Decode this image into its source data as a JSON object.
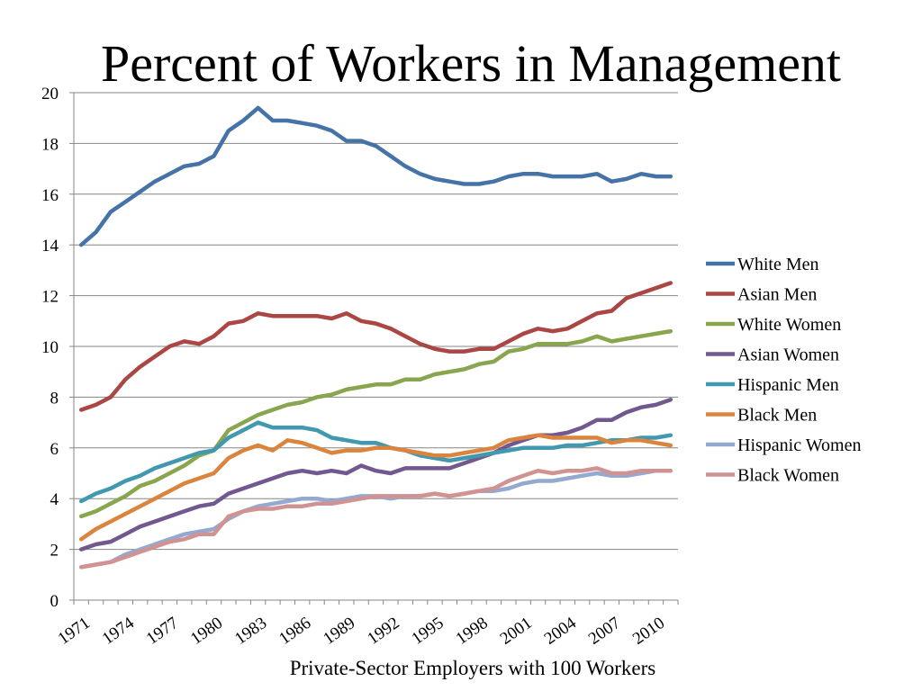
{
  "chart_data": {
    "type": "line",
    "title": "Percent of Workers in Management",
    "xlabel": "Private-Sector Employers with 100 Workers",
    "ylabel": "",
    "ylim": [
      0,
      20
    ],
    "yticks": [
      0,
      2,
      4,
      6,
      8,
      10,
      12,
      14,
      16,
      18,
      20
    ],
    "xlim": [
      1971,
      2011
    ],
    "xticks": [
      1971,
      1974,
      1977,
      1980,
      1983,
      1986,
      1989,
      1992,
      1995,
      1998,
      2001,
      2004,
      2007,
      2010
    ],
    "grid": "horizontal",
    "legend": "right",
    "x": [
      1971,
      1972,
      1973,
      1974,
      1975,
      1976,
      1977,
      1978,
      1979,
      1980,
      1981,
      1982,
      1983,
      1984,
      1985,
      1986,
      1987,
      1988,
      1989,
      1990,
      1991,
      1992,
      1993,
      1994,
      1995,
      1996,
      1997,
      1998,
      1999,
      2000,
      2001,
      2002,
      2003,
      2004,
      2005,
      2006,
      2007,
      2008,
      2009,
      2010,
      2011
    ],
    "series": [
      {
        "name": "White Men",
        "color": "#4572a7",
        "values": [
          14.0,
          14.5,
          15.3,
          15.7,
          16.1,
          16.5,
          16.8,
          17.1,
          17.2,
          17.5,
          18.5,
          18.9,
          19.4,
          18.9,
          18.9,
          18.8,
          18.7,
          18.5,
          18.1,
          18.1,
          17.9,
          17.5,
          17.1,
          16.8,
          16.6,
          16.5,
          16.4,
          16.4,
          16.5,
          16.7,
          16.8,
          16.8,
          16.7,
          16.7,
          16.7,
          16.8,
          16.5,
          16.6,
          16.8,
          16.7,
          16.7
        ]
      },
      {
        "name": "Asian Men",
        "color": "#aa4643",
        "values": [
          7.5,
          7.7,
          8.0,
          8.7,
          9.2,
          9.6,
          10.0,
          10.2,
          10.1,
          10.4,
          10.9,
          11.0,
          11.3,
          11.2,
          11.2,
          11.2,
          11.2,
          11.1,
          11.3,
          11.0,
          10.9,
          10.7,
          10.4,
          10.1,
          9.9,
          9.8,
          9.8,
          9.9,
          9.9,
          10.2,
          10.5,
          10.7,
          10.6,
          10.7,
          11.0,
          11.3,
          11.4,
          11.9,
          12.1,
          12.3,
          12.5
        ]
      },
      {
        "name": "White Women",
        "color": "#89a54e",
        "values": [
          3.3,
          3.5,
          3.8,
          4.1,
          4.5,
          4.7,
          5.0,
          5.3,
          5.7,
          5.9,
          6.7,
          7.0,
          7.3,
          7.5,
          7.7,
          7.8,
          8.0,
          8.1,
          8.3,
          8.4,
          8.5,
          8.5,
          8.7,
          8.7,
          8.9,
          9.0,
          9.1,
          9.3,
          9.4,
          9.8,
          9.9,
          10.1,
          10.1,
          10.1,
          10.2,
          10.4,
          10.2,
          10.3,
          10.4,
          10.5,
          10.6
        ]
      },
      {
        "name": "Asian Women",
        "color": "#71588f",
        "values": [
          2.0,
          2.2,
          2.3,
          2.6,
          2.9,
          3.1,
          3.3,
          3.5,
          3.7,
          3.8,
          4.2,
          4.4,
          4.6,
          4.8,
          5.0,
          5.1,
          5.0,
          5.1,
          5.0,
          5.3,
          5.1,
          5.0,
          5.2,
          5.2,
          5.2,
          5.2,
          5.4,
          5.6,
          5.8,
          6.1,
          6.3,
          6.5,
          6.5,
          6.6,
          6.8,
          7.1,
          7.1,
          7.4,
          7.6,
          7.7,
          7.9
        ]
      },
      {
        "name": "Hispanic Men",
        "color": "#4198af",
        "values": [
          3.9,
          4.2,
          4.4,
          4.7,
          4.9,
          5.2,
          5.4,
          5.6,
          5.8,
          5.9,
          6.4,
          6.7,
          7.0,
          6.8,
          6.8,
          6.8,
          6.7,
          6.4,
          6.3,
          6.2,
          6.2,
          6.0,
          5.9,
          5.7,
          5.6,
          5.5,
          5.6,
          5.7,
          5.8,
          5.9,
          6.0,
          6.0,
          6.0,
          6.1,
          6.1,
          6.2,
          6.3,
          6.3,
          6.4,
          6.4,
          6.5
        ]
      },
      {
        "name": "Black Men",
        "color": "#db843d",
        "values": [
          2.4,
          2.8,
          3.1,
          3.4,
          3.7,
          4.0,
          4.3,
          4.6,
          4.8,
          5.0,
          5.6,
          5.9,
          6.1,
          5.9,
          6.3,
          6.2,
          6.0,
          5.8,
          5.9,
          5.9,
          6.0,
          6.0,
          5.9,
          5.8,
          5.7,
          5.7,
          5.8,
          5.9,
          6.0,
          6.3,
          6.4,
          6.5,
          6.4,
          6.4,
          6.4,
          6.4,
          6.2,
          6.3,
          6.3,
          6.2,
          6.1
        ]
      },
      {
        "name": "Hispanic Women",
        "color": "#93a9cf",
        "values": [
          1.3,
          1.4,
          1.5,
          1.8,
          2.0,
          2.2,
          2.4,
          2.6,
          2.7,
          2.8,
          3.2,
          3.5,
          3.7,
          3.8,
          3.9,
          4.0,
          4.0,
          3.9,
          4.0,
          4.1,
          4.1,
          4.0,
          4.1,
          4.1,
          4.2,
          4.1,
          4.2,
          4.3,
          4.3,
          4.4,
          4.6,
          4.7,
          4.7,
          4.8,
          4.9,
          5.0,
          4.9,
          4.9,
          5.0,
          5.1,
          5.1
        ]
      },
      {
        "name": "Black Women",
        "color": "#d19392",
        "values": [
          1.3,
          1.4,
          1.5,
          1.7,
          1.9,
          2.1,
          2.3,
          2.4,
          2.6,
          2.6,
          3.3,
          3.5,
          3.6,
          3.6,
          3.7,
          3.7,
          3.8,
          3.8,
          3.9,
          4.0,
          4.1,
          4.1,
          4.1,
          4.1,
          4.2,
          4.1,
          4.2,
          4.3,
          4.4,
          4.7,
          4.9,
          5.1,
          5.0,
          5.1,
          5.1,
          5.2,
          5.0,
          5.0,
          5.1,
          5.1,
          5.1
        ]
      }
    ]
  }
}
